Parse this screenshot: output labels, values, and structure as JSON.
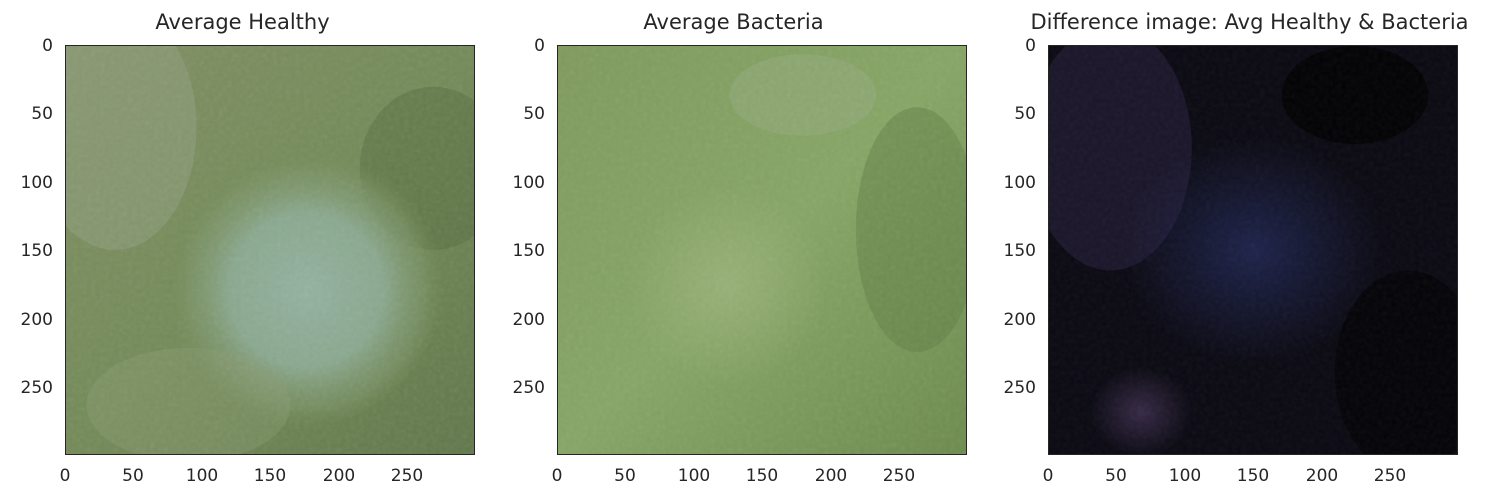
{
  "chart_data": [
    {
      "type": "image",
      "title": "Average Healthy",
      "x_ticks": [
        "0",
        "50",
        "100",
        "150",
        "200",
        "250"
      ],
      "y_ticks": [
        "0",
        "50",
        "100",
        "150",
        "200",
        "250"
      ],
      "xlim": [
        0,
        299
      ],
      "ylim": [
        299,
        0
      ],
      "dominant_colors": [
        "#7a8f5f",
        "#8faa93",
        "#5f7a45"
      ]
    },
    {
      "type": "image",
      "title": "Average Bacteria",
      "x_ticks": [
        "0",
        "50",
        "100",
        "150",
        "200",
        "250"
      ],
      "y_ticks": [
        "0",
        "50",
        "100",
        "150",
        "200",
        "250"
      ],
      "xlim": [
        0,
        299
      ],
      "ylim": [
        299,
        0
      ],
      "dominant_colors": [
        "#82a05f",
        "#6f8f4e",
        "#9bb279"
      ]
    },
    {
      "type": "image",
      "title": "Difference image: Avg Healthy & Bacteria",
      "x_ticks": [
        "0",
        "50",
        "100",
        "150",
        "200",
        "250"
      ],
      "y_ticks": [
        "0",
        "50",
        "100",
        "150",
        "200",
        "250"
      ],
      "xlim": [
        0,
        299
      ],
      "ylim": [
        299,
        0
      ],
      "dominant_colors": [
        "#0b0a16",
        "#1c2045",
        "#2f2440"
      ]
    }
  ]
}
